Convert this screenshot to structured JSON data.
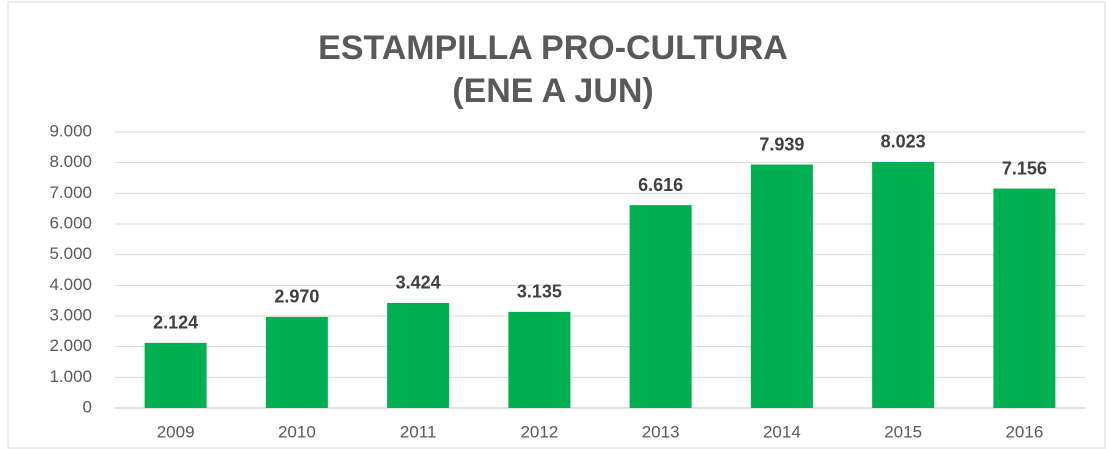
{
  "chart_data": {
    "type": "bar",
    "title": [
      "ESTAMPILLA PRO-CULTURA",
      "(ENE A JUN)"
    ],
    "categories": [
      "2009",
      "2010",
      "2011",
      "2012",
      "2013",
      "2014",
      "2015",
      "2016"
    ],
    "values": [
      2124,
      2970,
      3424,
      3135,
      6616,
      7939,
      8023,
      7156
    ],
    "value_labels": [
      "2.124",
      "2.970",
      "3.424",
      "3.135",
      "6.616",
      "7.939",
      "8.023",
      "7.156"
    ],
    "color": "#00b050",
    "ylim": [
      0,
      9000
    ],
    "yticks": [
      0,
      {
        "value": 1000,
        "label": "1.000"
      },
      {
        "value": 2000,
        "label": "2.000"
      },
      {
        "value": 3000,
        "label": "3.000"
      },
      {
        "value": 4000,
        "label": "4.000"
      },
      {
        "value": 5000,
        "label": "5.000"
      },
      {
        "value": 6000,
        "label": "6.000"
      },
      {
        "value": 7000,
        "label": "7.000"
      },
      {
        "value": 8000,
        "label": "8.000"
      },
      {
        "value": 9000,
        "label": "9.000"
      }
    ],
    "grid": true
  }
}
